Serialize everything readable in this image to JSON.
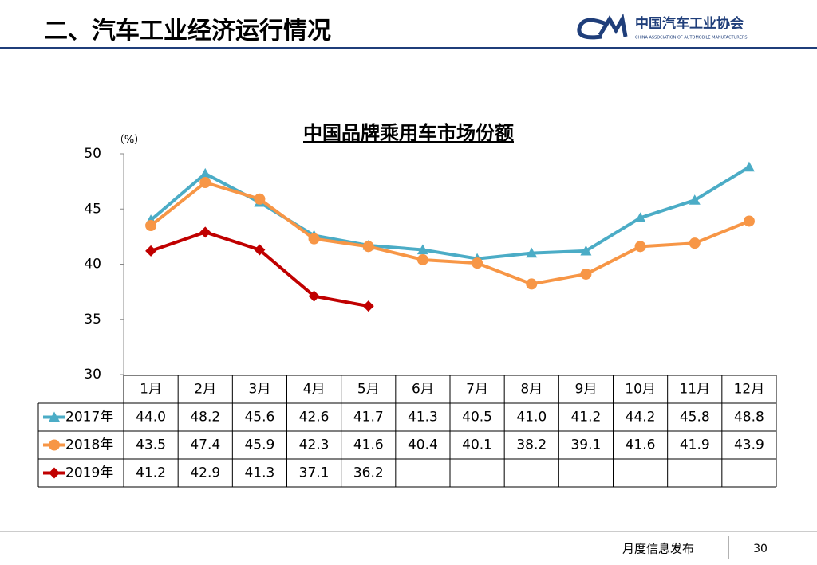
{
  "header": {
    "title": "二、汽车工业经济运行情况",
    "logo_name": "中国汽车工业协会",
    "logo_english": "CHINA ASSOCIATION OF AUTOMOBILE MANUFACTURERS"
  },
  "footer": {
    "text": "月度信息发布",
    "page": "30"
  },
  "chart_data": {
    "type": "line",
    "title": "中国品牌乘用车市场份额",
    "y_label": "（%）",
    "categories": [
      "1月",
      "2月",
      "3月",
      "4月",
      "5月",
      "6月",
      "7月",
      "8月",
      "9月",
      "10月",
      "11月",
      "12月"
    ],
    "ylim": [
      30,
      50
    ],
    "yticks": [
      30,
      35,
      40,
      45,
      50
    ],
    "grid": false,
    "series": [
      {
        "name": "2017年",
        "color": "#4bacc6",
        "marker": "triangle",
        "values": [
          44.0,
          48.2,
          45.6,
          42.6,
          41.7,
          41.3,
          40.5,
          41.0,
          41.2,
          44.2,
          45.8,
          48.8
        ],
        "value_labels": [
          "44.0",
          "48.2",
          "45.6",
          "42.6",
          "41.7",
          "41.3",
          "40.5",
          "41.0",
          "41.2",
          "44.2",
          "45.8",
          "48.8"
        ]
      },
      {
        "name": "2018年",
        "color": "#f79646",
        "marker": "circle",
        "values": [
          43.5,
          47.4,
          45.9,
          42.3,
          41.6,
          40.4,
          40.1,
          38.2,
          39.1,
          41.6,
          41.9,
          43.9
        ],
        "value_labels": [
          "43.5",
          "47.4",
          "45.9",
          "42.3",
          "41.6",
          "40.4",
          "40.1",
          "38.2",
          "39.1",
          "41.6",
          "41.9",
          "43.9"
        ]
      },
      {
        "name": "2019年",
        "color": "#c00000",
        "marker": "diamond",
        "values": [
          41.2,
          42.9,
          41.3,
          37.1,
          36.2,
          null,
          null,
          null,
          null,
          null,
          null,
          null
        ],
        "value_labels": [
          "41.2",
          "42.9",
          "41.3",
          "37.1",
          "36.2",
          null,
          null,
          null,
          null,
          null,
          null,
          null
        ]
      }
    ]
  }
}
